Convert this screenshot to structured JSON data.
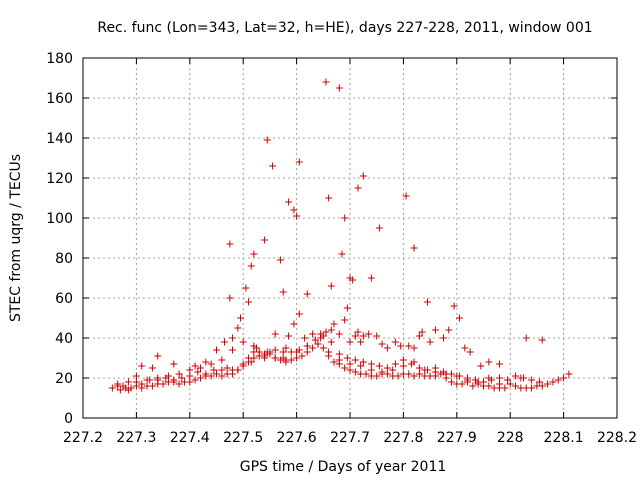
{
  "chart_data": {
    "type": "scatter",
    "title": "Rec. func (Lon=343, Lat=32, h=HE), days 227-228, 2011, window 001",
    "xlabel": "GPS time / Days of year 2011",
    "ylabel": "STEC from uqrg / TECUs",
    "xlim": [
      227.2,
      228.2
    ],
    "ylim": [
      0,
      180
    ],
    "xticks": [
      "227.2",
      "227.3",
      "227.4",
      "227.5",
      "227.6",
      "227.7",
      "227.8",
      "227.9",
      "228",
      "228.1",
      "228.2"
    ],
    "yticks": [
      "0",
      "20",
      "40",
      "60",
      "80",
      "100",
      "120",
      "140",
      "160",
      "180"
    ],
    "grid": true,
    "marker": "+",
    "color": "#cc0000",
    "x": [
      227.255,
      227.265,
      227.27,
      227.28,
      227.285,
      227.29,
      227.3,
      227.31,
      227.32,
      227.33,
      227.34,
      227.35,
      227.36,
      227.37,
      227.38,
      227.39,
      227.4,
      227.41,
      227.42,
      227.43,
      227.44,
      227.45,
      227.46,
      227.47,
      227.48,
      227.49,
      227.5,
      227.51,
      227.52,
      227.53,
      227.54,
      227.55,
      227.56,
      227.57,
      227.58,
      227.59,
      227.6,
      227.61,
      227.62,
      227.63,
      227.64,
      227.65,
      227.66,
      227.67,
      227.68,
      227.69,
      227.7,
      227.71,
      227.72,
      227.73,
      227.74,
      227.75,
      227.76,
      227.77,
      227.78,
      227.79,
      227.8,
      227.81,
      227.82,
      227.83,
      227.84,
      227.85,
      227.86,
      227.87,
      227.88,
      227.89,
      227.9,
      227.91,
      227.92,
      227.93,
      227.94,
      227.95,
      227.96,
      227.97,
      227.98,
      227.99,
      228.0,
      228.01,
      228.02,
      228.03,
      228.04,
      228.05,
      228.06,
      228.07,
      228.08,
      228.09,
      228.1,
      228.11,
      227.265,
      227.275,
      227.285,
      227.3,
      227.31,
      227.325,
      227.34,
      227.355,
      227.37,
      227.385,
      227.4,
      227.415,
      227.43,
      227.445,
      227.46,
      227.47,
      227.48,
      227.49,
      227.5,
      227.51,
      227.52,
      227.53,
      227.545,
      227.56,
      227.575,
      227.59,
      227.605,
      227.62,
      227.635,
      227.65,
      227.665,
      227.68,
      227.695,
      227.71,
      227.725,
      227.74,
      227.755,
      227.77,
      227.785,
      227.8,
      227.815,
      227.83,
      227.845,
      227.86,
      227.875,
      227.89,
      227.905,
      227.92,
      227.935,
      227.95,
      227.965,
      227.98,
      227.995,
      228.01,
      228.025,
      228.04,
      228.055,
      227.3,
      227.32,
      227.34,
      227.36,
      227.38,
      227.4,
      227.42,
      227.44,
      227.46,
      227.48,
      227.5,
      227.52,
      227.54,
      227.56,
      227.58,
      227.6,
      227.62,
      227.64,
      227.66,
      227.68,
      227.7,
      227.72,
      227.74,
      227.76,
      227.78,
      227.8,
      227.82,
      227.84,
      227.86,
      227.88,
      227.9,
      227.92,
      227.94,
      227.96,
      227.98,
      227.31,
      227.33,
      227.34,
      227.37,
      227.41,
      227.43,
      227.45,
      227.465,
      227.475,
      227.48,
      227.49,
      227.495,
      227.505,
      227.515,
      227.525,
      227.54,
      227.55,
      227.56,
      227.575,
      227.58,
      227.585,
      227.595,
      227.605,
      227.615,
      227.63,
      227.645,
      227.655,
      227.665,
      227.67,
      227.68,
      227.69,
      227.695,
      227.7,
      227.71,
      227.715,
      227.72,
      227.725,
      227.735,
      227.75,
      227.76,
      227.77,
      227.785,
      227.795,
      227.81,
      227.82,
      227.83,
      227.835,
      227.85,
      227.86,
      227.875,
      227.885,
      227.895,
      227.905,
      227.915,
      227.925,
      227.945,
      227.96,
      227.98,
      228.02,
      228.03,
      228.06,
      227.545,
      227.655,
      227.68,
      227.605,
      227.585,
      227.555,
      227.595,
      227.715,
      227.725,
      227.66,
      227.69,
      227.7,
      227.82,
      227.54,
      227.51,
      227.515,
      227.52,
      227.57,
      227.6,
      227.62,
      227.645,
      227.665,
      227.685,
      227.705,
      227.74,
      227.755,
      227.805,
      227.845,
      227.575,
      227.475
    ],
    "y": [
      15,
      16,
      14,
      15,
      14,
      15,
      16,
      15,
      16,
      16,
      17,
      17,
      18,
      18,
      17,
      18,
      18,
      19,
      20,
      21,
      21,
      22,
      21,
      22,
      22,
      24,
      26,
      28,
      30,
      31,
      32,
      32,
      30,
      29,
      28,
      29,
      30,
      31,
      33,
      35,
      37,
      35,
      31,
      28,
      27,
      25,
      24,
      23,
      22,
      22,
      21,
      21,
      22,
      22,
      21,
      21,
      22,
      22,
      21,
      22,
      21,
      21,
      21,
      22,
      20,
      18,
      17,
      17,
      18,
      16,
      17,
      16,
      16,
      15,
      15,
      15,
      17,
      16,
      15,
      15,
      15,
      16,
      16,
      17,
      18,
      19,
      20,
      22,
      17,
      16,
      18,
      18,
      17,
      19,
      19,
      20,
      19,
      20,
      21,
      23,
      22,
      24,
      24,
      25,
      24,
      24,
      27,
      30,
      33,
      33,
      33,
      34,
      33,
      33,
      34,
      36,
      39,
      41,
      38,
      32,
      30,
      29,
      28,
      27,
      26,
      25,
      27,
      29,
      27,
      25,
      24,
      25,
      23,
      22,
      21,
      20,
      19,
      18,
      19,
      20,
      19,
      21,
      20,
      19,
      18,
      21,
      19,
      20,
      21,
      22,
      24,
      25,
      27,
      29,
      34,
      38,
      36,
      31,
      30,
      29,
      33,
      36,
      37,
      33,
      29,
      27,
      26,
      24,
      23,
      24,
      26,
      28,
      24,
      23,
      22,
      21,
      19,
      18,
      20,
      17,
      26,
      25,
      31,
      27,
      26,
      28,
      34,
      38,
      60,
      40,
      45,
      50,
      65,
      28,
      35,
      30,
      33,
      42,
      30,
      35,
      41,
      47,
      52,
      40,
      42,
      40,
      43,
      44,
      47,
      42,
      49,
      55,
      38,
      41,
      43,
      38,
      41,
      42,
      41,
      37,
      35,
      38,
      36,
      36,
      35,
      41,
      43,
      38,
      44,
      40,
      44,
      56,
      50,
      35,
      33,
      26,
      28,
      27,
      20,
      40,
      39,
      139,
      168,
      165,
      128,
      108,
      126,
      104,
      115,
      121,
      110,
      100,
      70,
      85,
      89,
      58,
      76,
      82,
      79,
      101,
      62,
      42,
      66,
      82,
      69,
      70,
      95,
      111,
      58,
      63,
      87
    ]
  }
}
